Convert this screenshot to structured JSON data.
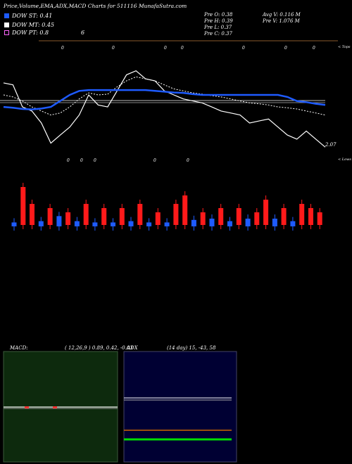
{
  "header": {
    "title": "Price,Volume,EMA,ADX,MACD Charts for 511116  MunafaSutra.com"
  },
  "legend": [
    {
      "label": "DOW ST: 0.41",
      "color": "#1e5bff"
    },
    {
      "label": "DOW MT: 0.45",
      "color": "#ffffff"
    },
    {
      "label": "DOW PT: 0.8",
      "color": "#ff66ff"
    }
  ],
  "info": {
    "open": "Pre  O: 0.38",
    "high": "Pre  H: 0.39",
    "low": "Pre  L: 0.37",
    "close": "Pre  C: 0.37",
    "avg_vol": "Avg V: 0.116  M",
    "pre_vol": "Pre  V: 1.076  M",
    "six": "6"
  },
  "labels": {
    "tops": "< Tops",
    "lows": "< Lows",
    "last_price": "2.07"
  },
  "top_markers": [
    "0",
    "0",
    "0",
    "0",
    "0",
    "0",
    "0"
  ],
  "low_markers": [
    "0",
    "0",
    "0",
    "0",
    "0"
  ],
  "macd": {
    "title": "MACD:",
    "params": "( 12,26,9 ) 0.89,  0.42,  -0.03"
  },
  "adx": {
    "title": "ADX",
    "params": "(14  day)  15,  -43,  58"
  },
  "colors": {
    "ema_short": "#1e5bff",
    "up": "#1e5bff",
    "down": "#ff1a1a",
    "macd_bg": "#0d2a0d",
    "adx_bg": "#000033"
  },
  "chart_data": {
    "type": "line",
    "series": [
      {
        "values": [
          0.9,
          0.85,
          0.3,
          0.2,
          -0.1,
          -0.6,
          -0.4,
          -0.2,
          0.1,
          0.6,
          0.35,
          0.3,
          0.7,
          1.1,
          1.2,
          1.0,
          0.95,
          0.7,
          0.6,
          0.5,
          0.45,
          0.4,
          0.3,
          0.2,
          0.15,
          0.1,
          -0.1,
          -0.05,
          0.0,
          -0.2,
          -0.4,
          -0.5,
          -0.3,
          -0.5,
          -0.7
        ]
      },
      {
        "values": [
          0.6,
          0.55,
          0.45,
          0.3,
          0.2,
          0.1,
          0.15,
          0.3,
          0.5,
          0.65,
          0.6,
          0.62,
          0.8,
          0.95,
          1.05,
          1.0,
          0.95,
          0.85,
          0.75,
          0.7,
          0.65,
          0.62,
          0.58,
          0.55,
          0.5,
          0.45,
          0.4,
          0.38,
          0.35,
          0.3,
          0.28,
          0.25,
          0.2,
          0.15,
          0.1
        ]
      },
      {
        "values": [
          0.3,
          0.28,
          0.25,
          0.24,
          0.26,
          0.3,
          0.45,
          0.6,
          0.7,
          0.72,
          0.72,
          0.72,
          0.72,
          0.72,
          0.72,
          0.72,
          0.7,
          0.68,
          0.66,
          0.65,
          0.62,
          0.6,
          0.6,
          0.6,
          0.6,
          0.6,
          0.6,
          0.6,
          0.6,
          0.6,
          0.55,
          0.45,
          0.42,
          0.38,
          0.35
        ]
      }
    ],
    "volume": {
      "values": [
        0.2,
        0.9,
        0.5,
        0.3,
        0.4,
        0.7,
        0.3,
        0.3,
        0.5,
        0.2,
        0.4,
        0.2,
        0.4,
        0.3,
        0.5,
        0.2,
        0.3,
        0.2,
        0.5,
        0.7,
        0.4,
        0.3,
        0.5,
        0.4,
        0.3,
        0.4,
        0.5,
        0.3,
        0.6,
        0.5,
        0.4,
        0.3,
        0.5,
        0.4,
        0.3
      ],
      "direction": [
        "up",
        "down",
        "down",
        "up",
        "down",
        "up",
        "down",
        "up",
        "down",
        "up",
        "down",
        "up",
        "down",
        "up",
        "down",
        "up",
        "down",
        "up",
        "down",
        "down",
        "up",
        "down",
        "up",
        "down",
        "up",
        "down",
        "up",
        "down",
        "down",
        "up",
        "down",
        "up",
        "down",
        "down",
        "down"
      ]
    },
    "macd_series": {
      "values": [
        0.05,
        0.05,
        0.05,
        0.05,
        0.05
      ]
    },
    "adx_series": [
      {
        "name": "+DI",
        "values": [
          15,
          15
        ]
      },
      {
        "name": "-DI",
        "values": [
          43,
          43
        ]
      },
      {
        "name": "ADX",
        "values": [
          58,
          58
        ]
      }
    ]
  }
}
